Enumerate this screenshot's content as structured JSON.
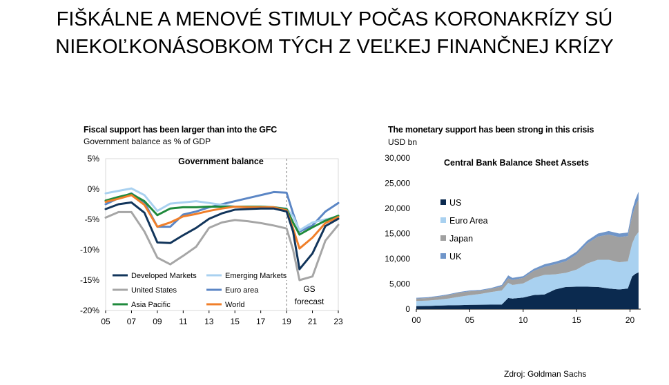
{
  "slide": {
    "title_line1": "FIŠKÁLNE A MENOVÉ STIMULY POČAS KORONAKRÍZY SÚ",
    "title_line2": "NIEKOĽKONÁSOBKOM TÝCH Z VEĽKEJ FINANČNEJ KRÍZY",
    "source": "Zdroj: Goldman Sachs"
  },
  "chart_data": [
    {
      "type": "line",
      "title": "Fiscal support has been larger than into the GFC",
      "subtitle": "Government balance as % of GDP",
      "inner_title": "Government balance",
      "annotation": [
        "GS",
        "forecast"
      ],
      "forecast_start": 2019,
      "ylim": [
        -20,
        5
      ],
      "xlim": [
        2005,
        2023
      ],
      "y_ticks": [
        5,
        0,
        -5,
        -10,
        -15,
        -20
      ],
      "y_tick_labels": [
        "5%",
        "0%",
        "-5%",
        "-10%",
        "-15%",
        "-20%"
      ],
      "x_ticks": [
        2005,
        2007,
        2009,
        2011,
        2013,
        2015,
        2017,
        2019,
        2021,
        2023
      ],
      "x_tick_labels": [
        "05",
        "07",
        "09",
        "11",
        "13",
        "15",
        "17",
        "19",
        "21",
        "23"
      ],
      "x": [
        2005,
        2006,
        2007,
        2008,
        2009,
        2010,
        2011,
        2012,
        2013,
        2014,
        2015,
        2016,
        2017,
        2018,
        2019,
        2019.5,
        2020,
        2021,
        2022,
        2023
      ],
      "series": [
        {
          "name": "Euro area",
          "color": "#5b86c5",
          "values": [
            -2.5,
            -1.5,
            -0.7,
            -2.2,
            -6.2,
            -6.2,
            -4.2,
            -3.7,
            -3.0,
            -2.5,
            -2.0,
            -1.5,
            -1.0,
            -0.5,
            -0.6,
            -4.0,
            -7.0,
            -6.0,
            -3.7,
            -2.3
          ]
        },
        {
          "name": "Emerging Markets",
          "color": "#a9d1f0",
          "values": [
            -0.7,
            -0.3,
            0.1,
            -1.0,
            -3.6,
            -2.4,
            -2.2,
            -2.0,
            -2.3,
            -2.6,
            -2.9,
            -3.0,
            -2.9,
            -3.0,
            -3.2,
            -4.5,
            -6.8,
            -5.5,
            -5.0,
            -4.6
          ]
        },
        {
          "name": "Asia Pacific",
          "color": "#1f8a3c",
          "values": [
            -1.9,
            -1.3,
            -0.8,
            -2.0,
            -4.3,
            -3.2,
            -3.0,
            -3.0,
            -2.9,
            -2.9,
            -2.9,
            -2.9,
            -2.9,
            -3.0,
            -3.3,
            -5.5,
            -7.5,
            -6.3,
            -5.2,
            -4.4
          ]
        },
        {
          "name": "World",
          "color": "#f07f2a",
          "values": [
            -2.1,
            -1.6,
            -1.0,
            -2.6,
            -6.2,
            -5.5,
            -4.5,
            -4.1,
            -3.6,
            -3.2,
            -2.9,
            -3.0,
            -3.0,
            -3.0,
            -3.5,
            -6.5,
            -9.8,
            -8.0,
            -5.6,
            -4.6
          ]
        },
        {
          "name": "Developed Markets",
          "color": "#12355b",
          "values": [
            -3.3,
            -2.5,
            -2.2,
            -3.9,
            -8.8,
            -8.9,
            -7.6,
            -6.4,
            -4.9,
            -4.0,
            -3.4,
            -3.3,
            -3.2,
            -3.2,
            -3.7,
            -7.0,
            -13.2,
            -10.6,
            -6.1,
            -4.9
          ]
        },
        {
          "name": "United States",
          "color": "#a6a6a6",
          "values": [
            -4.7,
            -3.8,
            -3.8,
            -7.0,
            -11.3,
            -12.4,
            -11.0,
            -9.5,
            -6.4,
            -5.5,
            -5.1,
            -5.3,
            -5.6,
            -6.0,
            -6.5,
            -10.0,
            -15.0,
            -14.4,
            -8.5,
            -5.9
          ]
        }
      ],
      "legend": [
        "Developed Markets",
        "Emerging Markets",
        "United States",
        "Euro area",
        "Asia Pacific",
        "World"
      ]
    },
    {
      "type": "area",
      "stacked": true,
      "title": "The monetary support has been strong in this crisis",
      "ylabel": "USD bn",
      "inner_title": "Central Bank Balance Sheet Assets",
      "ylim": [
        0,
        30000
      ],
      "y_ticks": [
        30000,
        25000,
        20000,
        15000,
        10000,
        5000,
        0
      ],
      "y_tick_labels": [
        "30,000",
        "25,000",
        "20,000",
        "15,000",
        "10,000",
        "5,000",
        "0"
      ],
      "x_ticks": [
        2000,
        2005,
        2010,
        2015,
        2020
      ],
      "x_tick_labels": [
        "00",
        "05",
        "10",
        "15",
        "20"
      ],
      "xlim": [
        2000,
        2021
      ],
      "x": [
        2000,
        2001,
        2002,
        2003,
        2004,
        2005,
        2006,
        2007,
        2008,
        2008.6,
        2009,
        2010,
        2011,
        2012,
        2013,
        2014,
        2015,
        2016,
        2017,
        2018,
        2019,
        2019.8,
        2020.2,
        2020.5,
        2020.8
      ],
      "series": [
        {
          "name": "US",
          "color": "#0b2a4f",
          "values": [
            600,
            620,
            700,
            750,
            800,
            850,
            870,
            890,
            900,
            2200,
            2100,
            2300,
            2800,
            2900,
            3900,
            4400,
            4450,
            4450,
            4400,
            4100,
            3900,
            4100,
            6500,
            7000,
            7300
          ]
        },
        {
          "name": "Euro Area",
          "color": "#a9d1f0",
          "values": [
            1000,
            1050,
            1150,
            1350,
            1650,
            1900,
            2150,
            2500,
            2800,
            3000,
            2700,
            2800,
            3400,
            3900,
            3000,
            2800,
            3400,
            4600,
            5400,
            5700,
            5400,
            5400,
            6500,
            7500,
            8000
          ]
        },
        {
          "name": "Japan",
          "color": "#a0a0a0",
          "values": [
            500,
            520,
            600,
            700,
            800,
            800,
            650,
            650,
            800,
            900,
            1000,
            1100,
            1400,
            1600,
            2000,
            2300,
            3000,
            4000,
            4600,
            5000,
            5000,
            5000,
            5500,
            6000,
            6500
          ]
        },
        {
          "name": "UK",
          "color": "#6f95c9",
          "values": [
            150,
            150,
            150,
            150,
            150,
            150,
            150,
            150,
            300,
            600,
            400,
            350,
            400,
            500,
            500,
            550,
            550,
            550,
            600,
            700,
            700,
            700,
            1100,
            1300,
            1500
          ]
        }
      ],
      "legend": [
        "US",
        "Euro Area",
        "Japan",
        "UK"
      ]
    }
  ]
}
